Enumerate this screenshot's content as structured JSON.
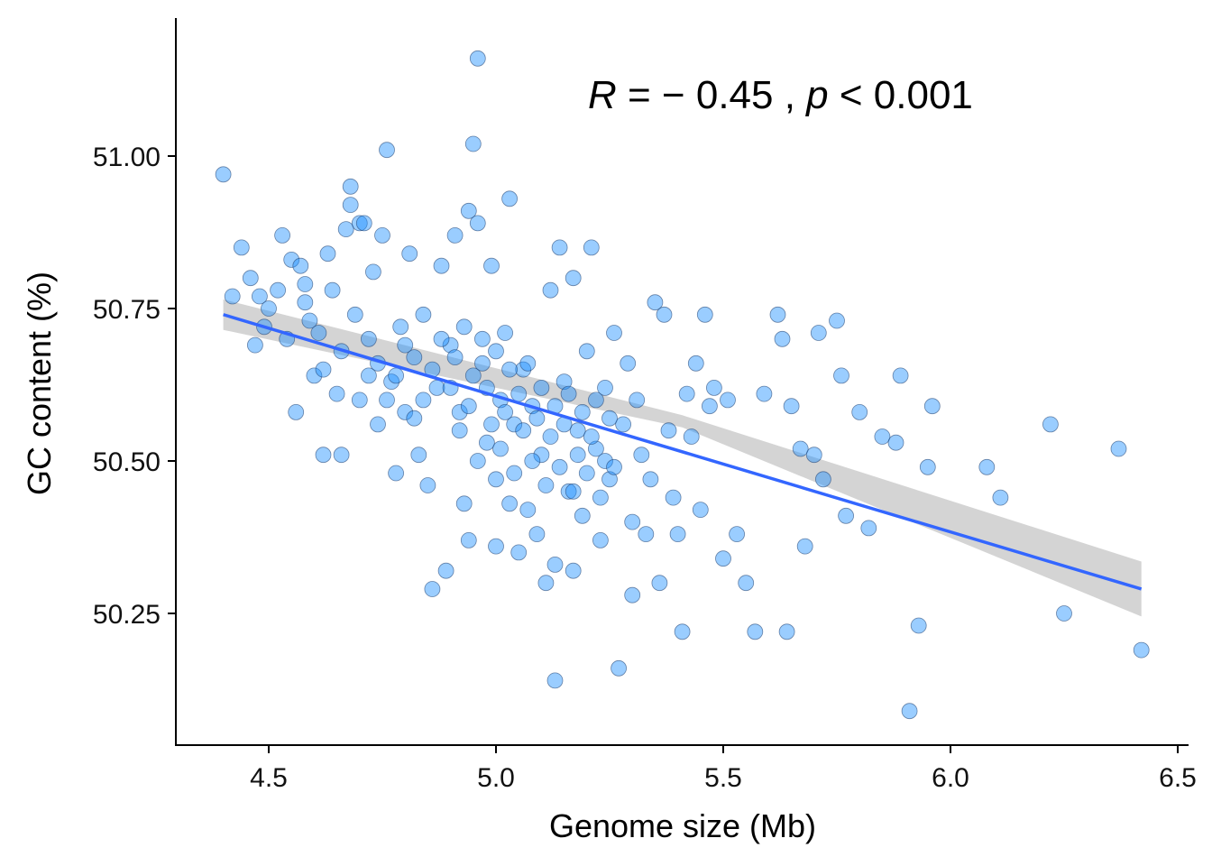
{
  "chart_data": {
    "type": "scatter",
    "title": "",
    "xlabel": "Genome size (Mb)",
    "ylabel": "GC content (%)",
    "xlim": [
      4.32,
      6.52
    ],
    "ylim": [
      50.03,
      51.25
    ],
    "x_ticks": [
      4.5,
      5.0,
      5.5,
      6.0,
      6.5
    ],
    "x_tick_labels": [
      "4.5",
      "5.0",
      "5.5",
      "6.0",
      "6.5"
    ],
    "y_ticks": [
      50.25,
      50.5,
      50.75,
      51.0
    ],
    "y_tick_labels": [
      "50.25",
      "50.50",
      "50.75",
      "51.00"
    ],
    "grid": false,
    "annotation": {
      "r_symbol": "R",
      "r_text": " = − 0.45 , ",
      "p_symbol": "p",
      "p_text": " < 0.001"
    },
    "regression": {
      "x_start": 4.4,
      "y_start": 50.74,
      "x_end": 6.42,
      "y_end": 50.29,
      "ci_start": [
        50.715,
        50.765
      ],
      "ci_mid": [
        50.555,
        50.575
      ],
      "ci_end": [
        50.245,
        50.335
      ],
      "color": "#3366ff",
      "band_color": "#cccccc"
    },
    "point_color": "#1e90ff",
    "series": [
      {
        "points": [
          [
            4.4,
            50.97
          ],
          [
            4.42,
            50.77
          ],
          [
            4.44,
            50.85
          ],
          [
            4.46,
            50.8
          ],
          [
            4.47,
            50.69
          ],
          [
            4.48,
            50.77
          ],
          [
            4.49,
            50.72
          ],
          [
            4.5,
            50.75
          ],
          [
            4.52,
            50.78
          ],
          [
            4.53,
            50.87
          ],
          [
            4.54,
            50.7
          ],
          [
            4.55,
            50.83
          ],
          [
            4.56,
            50.58
          ],
          [
            4.57,
            50.82
          ],
          [
            4.58,
            50.76
          ],
          [
            4.59,
            50.73
          ],
          [
            4.6,
            50.64
          ],
          [
            4.61,
            50.71
          ],
          [
            4.62,
            50.51
          ],
          [
            4.63,
            50.84
          ],
          [
            4.64,
            50.78
          ],
          [
            4.65,
            50.61
          ],
          [
            4.66,
            50.51
          ],
          [
            4.67,
            50.88
          ],
          [
            4.68,
            50.95
          ],
          [
            4.68,
            50.92
          ],
          [
            4.69,
            50.74
          ],
          [
            4.7,
            50.89
          ],
          [
            4.71,
            50.89
          ],
          [
            4.72,
            50.64
          ],
          [
            4.73,
            50.81
          ],
          [
            4.74,
            50.56
          ],
          [
            4.75,
            50.87
          ],
          [
            4.76,
            51.01
          ],
          [
            4.77,
            50.63
          ],
          [
            4.78,
            50.48
          ],
          [
            4.79,
            50.72
          ],
          [
            4.8,
            50.58
          ],
          [
            4.81,
            50.84
          ],
          [
            4.82,
            50.67
          ],
          [
            4.83,
            50.51
          ],
          [
            4.84,
            50.74
          ],
          [
            4.85,
            50.46
          ],
          [
            4.86,
            50.29
          ],
          [
            4.87,
            50.62
          ],
          [
            4.88,
            50.82
          ],
          [
            4.89,
            50.32
          ],
          [
            4.9,
            50.69
          ],
          [
            4.91,
            50.87
          ],
          [
            4.92,
            50.58
          ],
          [
            4.93,
            50.43
          ],
          [
            4.94,
            50.91
          ],
          [
            4.94,
            50.37
          ],
          [
            4.95,
            51.02
          ],
          [
            4.96,
            51.16
          ],
          [
            4.96,
            50.89
          ],
          [
            4.97,
            50.66
          ],
          [
            4.98,
            50.53
          ],
          [
            4.99,
            50.82
          ],
          [
            5.0,
            50.47
          ],
          [
            5.0,
            50.36
          ],
          [
            5.01,
            50.6
          ],
          [
            5.02,
            50.71
          ],
          [
            5.03,
            50.93
          ],
          [
            5.03,
            50.43
          ],
          [
            5.04,
            50.56
          ],
          [
            5.05,
            50.35
          ],
          [
            5.06,
            50.65
          ],
          [
            5.07,
            50.42
          ],
          [
            5.08,
            50.59
          ],
          [
            5.09,
            50.38
          ],
          [
            5.1,
            50.51
          ],
          [
            5.11,
            50.3
          ],
          [
            5.12,
            50.78
          ],
          [
            5.13,
            50.33
          ],
          [
            5.13,
            50.14
          ],
          [
            5.14,
            50.85
          ],
          [
            5.15,
            50.63
          ],
          [
            5.16,
            50.45
          ],
          [
            5.17,
            50.8
          ],
          [
            5.17,
            50.32
          ],
          [
            5.18,
            50.55
          ],
          [
            5.19,
            50.41
          ],
          [
            5.2,
            50.68
          ],
          [
            5.21,
            50.85
          ],
          [
            5.22,
            50.52
          ],
          [
            5.23,
            50.37
          ],
          [
            5.24,
            50.62
          ],
          [
            5.25,
            50.47
          ],
          [
            5.26,
            50.71
          ],
          [
            5.27,
            50.16
          ],
          [
            5.28,
            50.56
          ],
          [
            5.29,
            50.66
          ],
          [
            5.3,
            50.4
          ],
          [
            5.3,
            50.28
          ],
          [
            5.31,
            50.6
          ],
          [
            5.32,
            50.51
          ],
          [
            5.33,
            50.38
          ],
          [
            5.34,
            50.47
          ],
          [
            5.35,
            50.76
          ],
          [
            5.36,
            50.3
          ],
          [
            5.37,
            50.74
          ],
          [
            5.38,
            50.55
          ],
          [
            5.39,
            50.44
          ],
          [
            5.4,
            50.38
          ],
          [
            5.41,
            50.22
          ],
          [
            5.42,
            50.61
          ],
          [
            5.43,
            50.54
          ],
          [
            5.44,
            50.66
          ],
          [
            5.45,
            50.42
          ],
          [
            5.46,
            50.74
          ],
          [
            5.47,
            50.59
          ],
          [
            5.48,
            50.62
          ],
          [
            5.5,
            50.34
          ],
          [
            5.51,
            50.6
          ],
          [
            5.53,
            50.38
          ],
          [
            5.55,
            50.3
          ],
          [
            5.57,
            50.22
          ],
          [
            5.59,
            50.61
          ],
          [
            5.62,
            50.74
          ],
          [
            5.63,
            50.7
          ],
          [
            5.64,
            50.22
          ],
          [
            5.65,
            50.59
          ],
          [
            5.67,
            50.52
          ],
          [
            5.68,
            50.36
          ],
          [
            5.7,
            50.51
          ],
          [
            5.71,
            50.71
          ],
          [
            5.72,
            50.47
          ],
          [
            5.75,
            50.73
          ],
          [
            5.76,
            50.64
          ],
          [
            5.77,
            50.41
          ],
          [
            5.8,
            50.58
          ],
          [
            5.82,
            50.39
          ],
          [
            5.85,
            50.54
          ],
          [
            5.88,
            50.53
          ],
          [
            5.89,
            50.64
          ],
          [
            5.91,
            50.09
          ],
          [
            5.93,
            50.23
          ],
          [
            5.95,
            50.49
          ],
          [
            5.96,
            50.59
          ],
          [
            6.08,
            50.49
          ],
          [
            6.11,
            50.44
          ],
          [
            6.22,
            50.56
          ],
          [
            6.25,
            50.25
          ],
          [
            6.37,
            50.52
          ],
          [
            6.42,
            50.19
          ],
          [
            4.58,
            50.79
          ],
          [
            4.62,
            50.65
          ],
          [
            4.66,
            50.68
          ],
          [
            4.7,
            50.6
          ],
          [
            4.72,
            50.7
          ],
          [
            4.74,
            50.66
          ],
          [
            4.76,
            50.6
          ],
          [
            4.78,
            50.64
          ],
          [
            4.8,
            50.69
          ],
          [
            4.82,
            50.57
          ],
          [
            4.84,
            50.6
          ],
          [
            4.86,
            50.65
          ],
          [
            4.88,
            50.7
          ],
          [
            4.9,
            50.62
          ],
          [
            4.91,
            50.67
          ],
          [
            4.92,
            50.55
          ],
          [
            4.93,
            50.72
          ],
          [
            4.94,
            50.59
          ],
          [
            4.95,
            50.64
          ],
          [
            4.96,
            50.5
          ],
          [
            4.97,
            50.7
          ],
          [
            4.98,
            50.62
          ],
          [
            4.99,
            50.56
          ],
          [
            5.0,
            50.68
          ],
          [
            5.01,
            50.52
          ],
          [
            5.02,
            50.58
          ],
          [
            5.03,
            50.65
          ],
          [
            5.04,
            50.48
          ],
          [
            5.05,
            50.61
          ],
          [
            5.06,
            50.55
          ],
          [
            5.07,
            50.66
          ],
          [
            5.08,
            50.5
          ],
          [
            5.09,
            50.57
          ],
          [
            5.1,
            50.62
          ],
          [
            5.11,
            50.46
          ],
          [
            5.12,
            50.54
          ],
          [
            5.13,
            50.59
          ],
          [
            5.14,
            50.49
          ],
          [
            5.15,
            50.56
          ],
          [
            5.16,
            50.61
          ],
          [
            5.17,
            50.45
          ],
          [
            5.18,
            50.51
          ],
          [
            5.19,
            50.58
          ],
          [
            5.2,
            50.48
          ],
          [
            5.21,
            50.54
          ],
          [
            5.22,
            50.6
          ],
          [
            5.23,
            50.44
          ],
          [
            5.24,
            50.5
          ],
          [
            5.25,
            50.57
          ],
          [
            5.26,
            50.49
          ]
        ]
      }
    ]
  }
}
